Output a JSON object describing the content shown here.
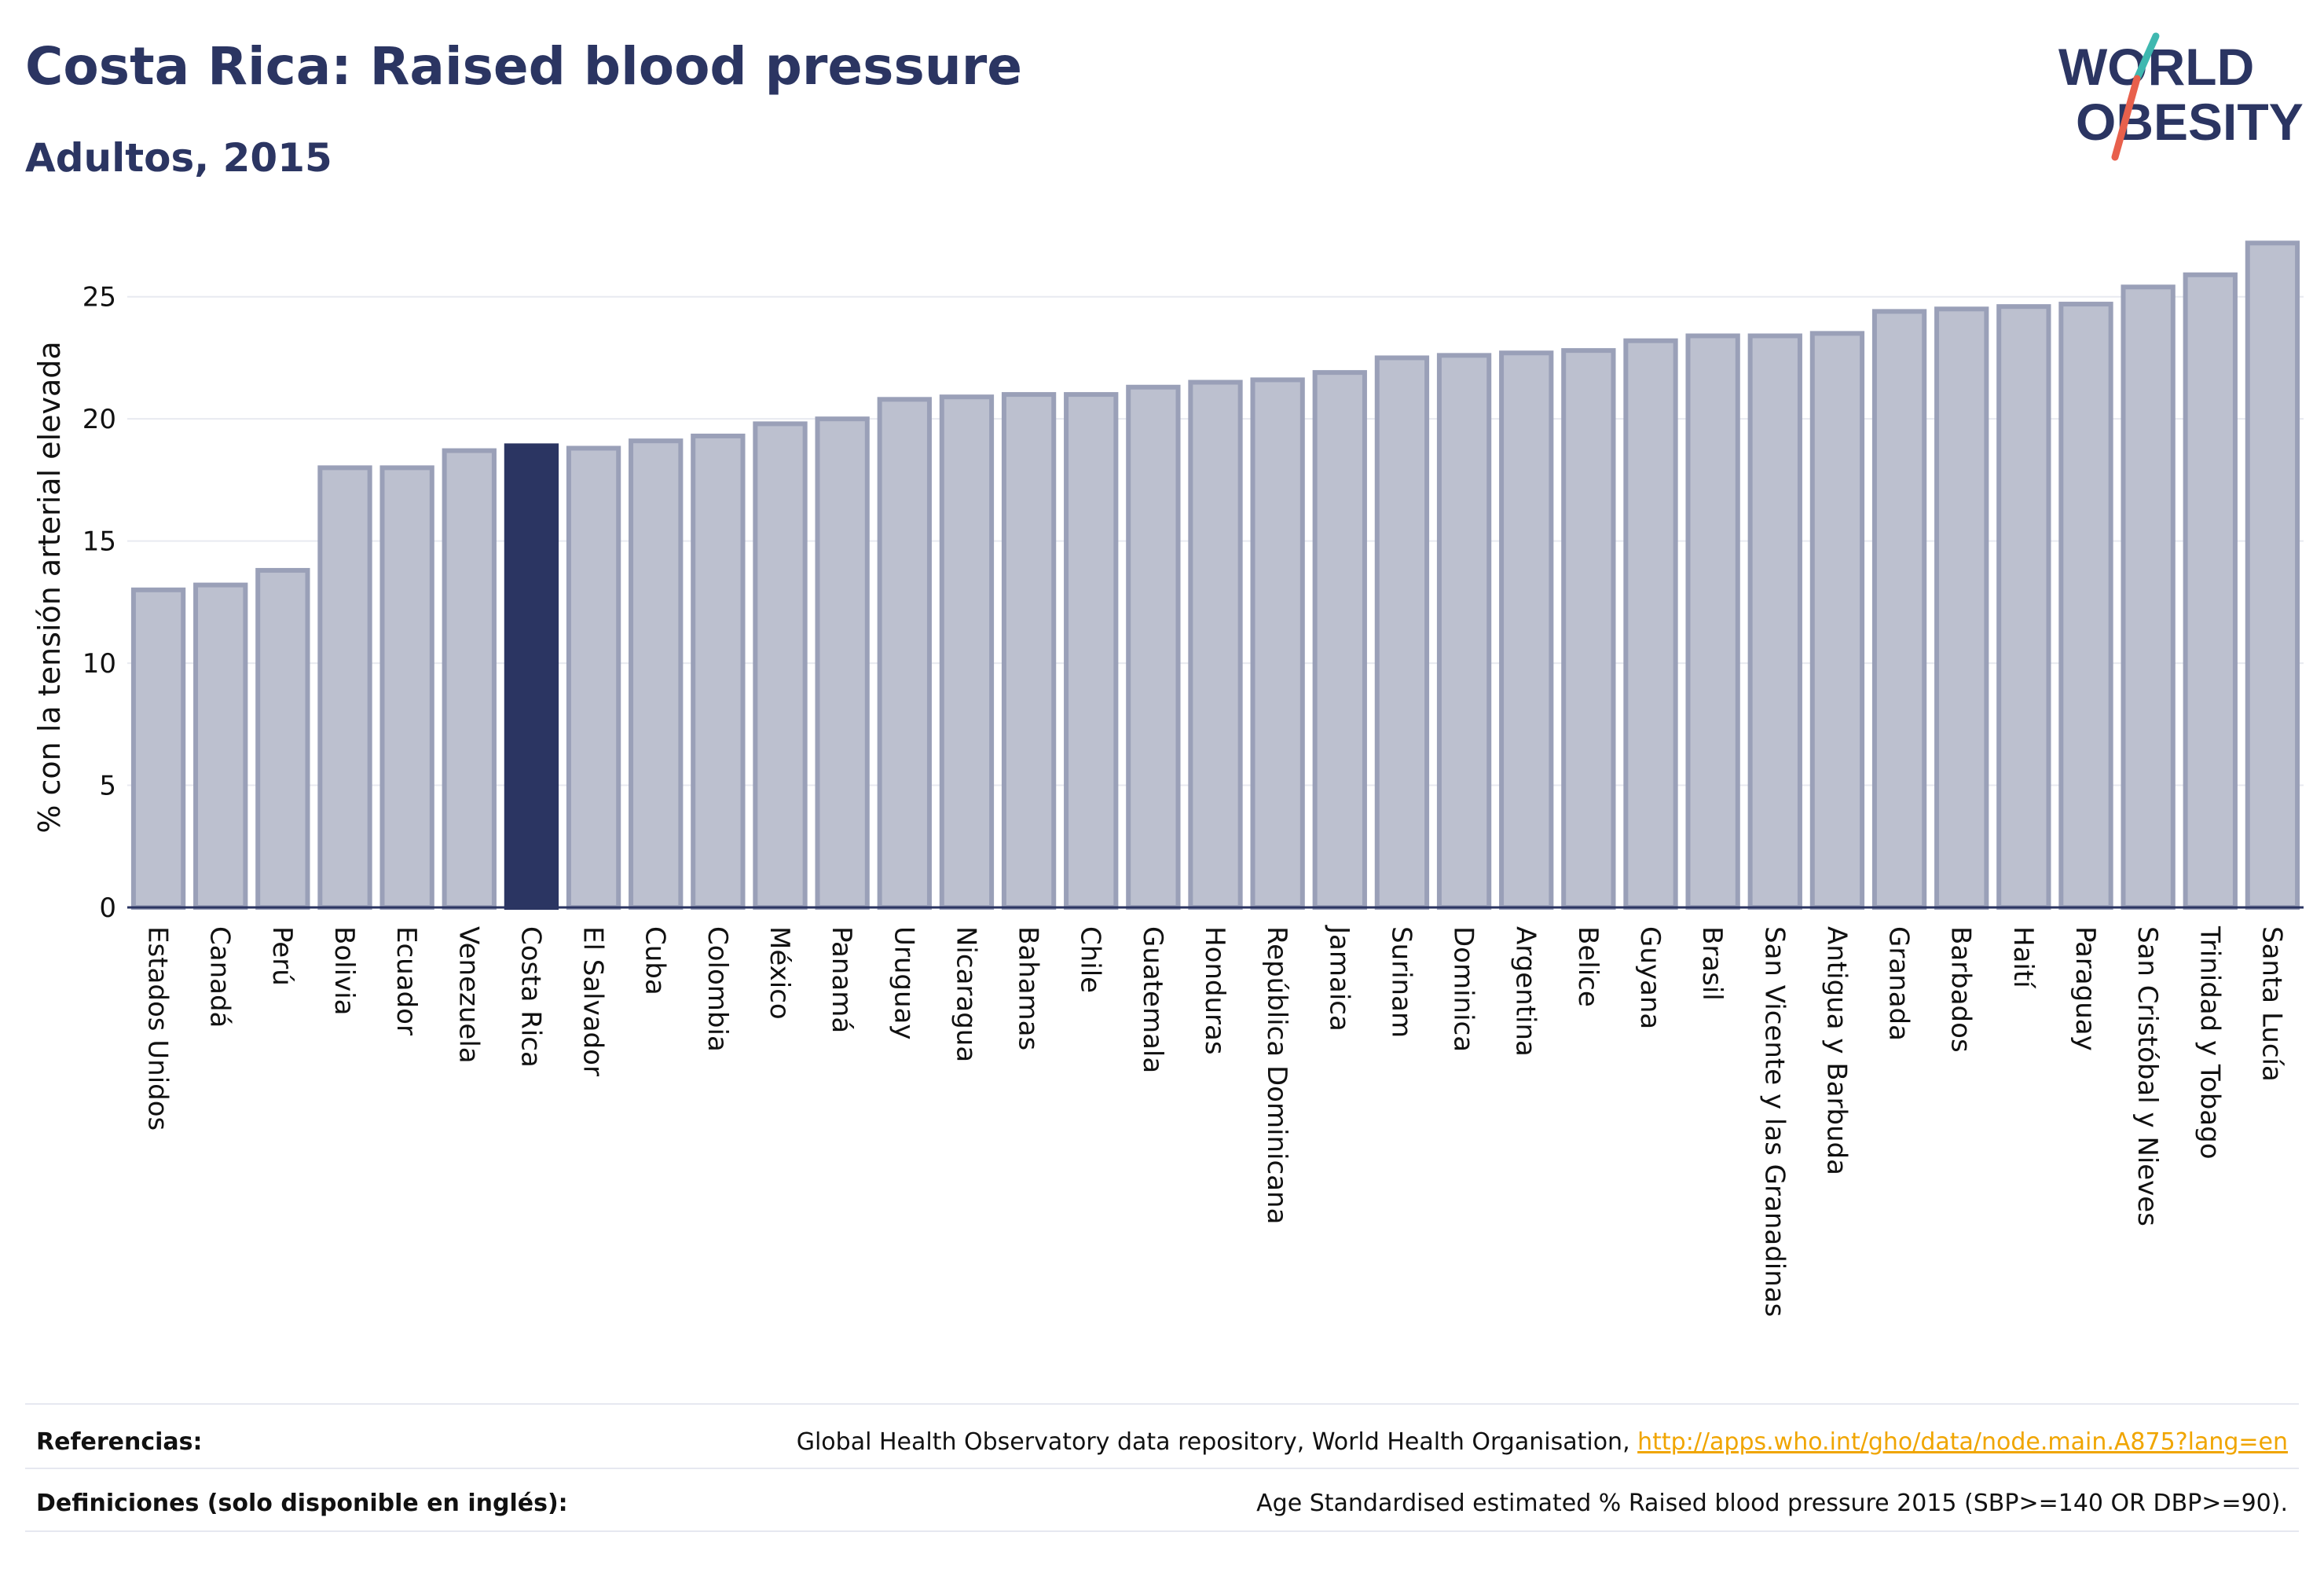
{
  "header": {
    "title": "Costa Rica: Raised blood pressure",
    "subtitle": "Adultos, 2015"
  },
  "logo": {
    "line1": "WORLD",
    "line2": "OBESITY",
    "text_color": "#2b3562",
    "slash_colors": [
      "#3fb8b0",
      "#e8604c"
    ]
  },
  "chart_data": {
    "type": "bar",
    "ylabel": "% con la tensión arterial elevada",
    "ylim": [
      0,
      27.5
    ],
    "yticks": [
      0,
      5,
      10,
      15,
      20,
      25
    ],
    "grid": true,
    "highlight": "Costa Rica",
    "colors": {
      "bar": "#bcc0cf",
      "bar_edge": "#9aa0b8",
      "highlight": "#2b3562"
    },
    "categories": [
      "Estados Unidos",
      "Canadá",
      "Perú",
      "Bolivia",
      "Ecuador",
      "Venezuela",
      "Costa Rica",
      "El Salvador",
      "Cuba",
      "Colombia",
      "México",
      "Panamá",
      "Uruguay",
      "Nicaragua",
      "Bahamas",
      "Chile",
      "Guatemala",
      "Honduras",
      "República Dominicana",
      "Jamaica",
      "Surinam",
      "Dominica",
      "Argentina",
      "Belice",
      "Guyana",
      "Brasil",
      "San Vicente y las Granadinas",
      "Antigua y Barbuda",
      "Granada",
      "Barbados",
      "Haití",
      "Paraguay",
      "San Cristóbal y Nieves",
      "Trinidad y Tobago",
      "Santa Lucía"
    ],
    "values": [
      13.0,
      13.2,
      13.8,
      18.0,
      18.0,
      18.7,
      18.9,
      18.8,
      19.1,
      19.3,
      19.8,
      20.0,
      20.8,
      20.9,
      21.0,
      21.0,
      21.3,
      21.5,
      21.6,
      21.9,
      22.5,
      22.6,
      22.7,
      22.8,
      23.2,
      23.4,
      23.4,
      23.5,
      24.4,
      24.5,
      24.6,
      24.7,
      25.4,
      25.9,
      27.2
    ]
  },
  "footer": {
    "references_label": "Referencias:",
    "references_text": "Global Health Observatory data repository, World Health Organisation, ",
    "references_link": "http://apps.who.int/gho/data/node.main.A875?lang=en",
    "definitions_label": "Definiciones (solo disponible en inglés):",
    "definitions_text": "Age Standardised estimated % Raised blood pressure 2015 (SBP>=140 OR DBP>=90)."
  }
}
